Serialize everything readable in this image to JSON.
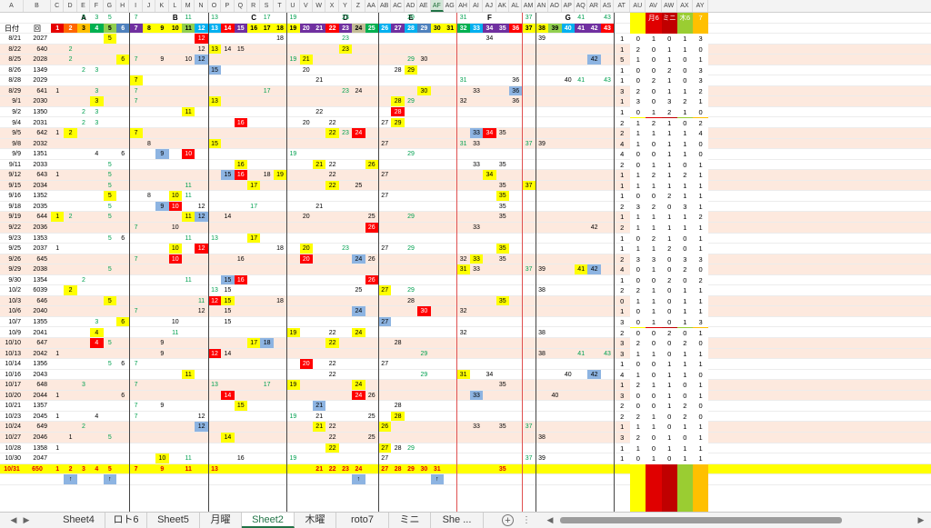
{
  "columns": [
    "A",
    "B",
    "C",
    "D",
    "E",
    "F",
    "G",
    "H",
    "I",
    "J",
    "K",
    "L",
    "M",
    "N",
    "O",
    "P",
    "Q",
    "R",
    "S",
    "T",
    "U",
    "V",
    "W",
    "X",
    "Y",
    "Z",
    "AA",
    "AB",
    "AC",
    "AD",
    "AE",
    "AF",
    "AG",
    "AH",
    "AI",
    "AJ",
    "AK",
    "AL",
    "AM",
    "AN",
    "AO",
    "AP",
    "AQ",
    "AR",
    "AS",
    "AT",
    "AU",
    "AV",
    "AW",
    "AX",
    "AY"
  ],
  "selected_column": "AF",
  "group_headers": [
    {
      "label": "A",
      "col": "E"
    },
    {
      "label": "B",
      "col": "L"
    },
    {
      "label": "C",
      "col": "R"
    },
    {
      "label": "D",
      "col": "Y"
    },
    {
      "label": "E",
      "col": "AD"
    },
    {
      "label": "F",
      "col": "AJ"
    },
    {
      "label": "G",
      "col": "AP"
    }
  ],
  "header_row": {
    "date_label": "日付",
    "kai_label": "回",
    "numbers": [
      "1",
      "2",
      "3",
      "4",
      "5",
      "6",
      "7",
      "8",
      "9",
      "10",
      "11",
      "12",
      "13",
      "14",
      "15",
      "16",
      "17",
      "18",
      "19",
      "20",
      "21",
      "22",
      "23",
      "24",
      "25",
      "26",
      "27",
      "28",
      "29",
      "30",
      "31",
      "32",
      "33",
      "34",
      "35",
      "36",
      "37",
      "38",
      "39",
      "40",
      "41",
      "42",
      "43"
    ],
    "top_numbers": {
      "E": "2",
      "F": "3",
      "G": "5",
      "I": "7",
      "M": "11",
      "O": "13",
      "S": "17",
      "U": "19",
      "Y": "23",
      "AD": "29",
      "AH": "31",
      "AM": "37",
      "AQ": "41",
      "AS": "43"
    },
    "sum_labels": [
      "",
      "月6",
      "ミニ",
      "木6",
      ""
    ],
    "sum_top": [
      "",
      "",
      "",
      "",
      "7"
    ]
  },
  "rows": [
    {
      "date": "8/21",
      "kai": "2027",
      "cells": {
        "G": "5",
        "N": "12",
        "T": "18",
        "Y": "23",
        "AJ": "34",
        "AN": "39"
      },
      "sum": [
        "1",
        "0",
        "1",
        "0",
        "1",
        "3"
      ]
    },
    {
      "date": "8/22",
      "kai": "640",
      "cells": {
        "D": "2",
        "N": "12",
        "O": "13",
        "P": "14",
        "Q": "15",
        "Y": "23"
      },
      "sum": [
        "1",
        "2",
        "0",
        "1",
        "1",
        "0"
      ]
    },
    {
      "date": "8/25",
      "kai": "2028",
      "cells": {
        "D": "2",
        "H": "6",
        "I": "7",
        "K": "9",
        "M": "10",
        "N": "12",
        "U": "19",
        "V": "21",
        "AD": "29",
        "AE": "30",
        "AR": "42"
      },
      "sum": [
        "5",
        "1",
        "0",
        "1",
        "0",
        "1"
      ]
    },
    {
      "date": "8/26",
      "kai": "1349",
      "cells": {
        "E": "2",
        "F": "3",
        "O": "15",
        "V": "20",
        "AC": "28",
        "AD": "29"
      },
      "sum": [
        "1",
        "0",
        "0",
        "2",
        "0",
        "3"
      ]
    },
    {
      "date": "8/28",
      "kai": "2029",
      "cells": {
        "I": "7",
        "W": "21",
        "AH": "31",
        "AL": "36",
        "AP": "40",
        "AQ": "41",
        "AS": "43"
      },
      "sum": [
        "1",
        "0",
        "2",
        "1",
        "0",
        "3"
      ]
    },
    {
      "date": "8/29",
      "kai": "641",
      "cells": {
        "C": "1",
        "F": "3",
        "I": "7",
        "S": "17",
        "Y": "23",
        "Z": "24",
        "AE": "30",
        "AI": "33",
        "AL": "36"
      },
      "sum": [
        "3",
        "2",
        "0",
        "1",
        "1",
        "2"
      ]
    },
    {
      "date": "9/1",
      "kai": "2030",
      "cells": {
        "F": "3",
        "I": "7",
        "O": "13",
        "AC": "28",
        "AD": "29",
        "AH": "32",
        "AL": "36"
      },
      "sum": [
        "1",
        "3",
        "0",
        "3",
        "2",
        "1"
      ]
    },
    {
      "date": "9/2",
      "kai": "1350",
      "cells": {
        "E": "2",
        "F": "3",
        "M": "11",
        "W": "22",
        "AC": "28"
      },
      "sum": [
        "1",
        "0",
        "1",
        "2",
        "1",
        "0"
      ]
    },
    {
      "date": "9/4",
      "kai": "2031",
      "cells": {
        "E": "2",
        "F": "3",
        "Q": "16",
        "V": "20",
        "X": "22",
        "AB": "27",
        "AC": "29"
      },
      "sum": [
        "2",
        "1",
        "2",
        "1",
        "0",
        "2"
      ]
    },
    {
      "date": "9/5",
      "kai": "642",
      "cells": {
        "C": "1",
        "D": "2",
        "I": "7",
        "X": "22",
        "Y": "23",
        "Z": "24",
        "AI": "33",
        "AJ": "34",
        "AK": "35"
      },
      "sum": [
        "2",
        "1",
        "1",
        "1",
        "1",
        "4"
      ]
    },
    {
      "date": "9/8",
      "kai": "2032",
      "cells": {
        "J": "8",
        "O": "15",
        "AB": "27",
        "AH": "31",
        "AI": "33",
        "AM": "37",
        "AN": "39"
      },
      "sum": [
        "4",
        "1",
        "0",
        "1",
        "1",
        "0"
      ]
    },
    {
      "date": "9/9",
      "kai": "1351",
      "cells": {
        "F": "4",
        "H": "6",
        "K": "9",
        "M": "10",
        "U": "19",
        "AD": "29"
      },
      "sum": [
        "4",
        "0",
        "0",
        "1",
        "1",
        "0"
      ]
    },
    {
      "date": "9/11",
      "kai": "2033",
      "cells": {
        "G": "5",
        "Q": "16",
        "W": "21",
        "X": "22",
        "AA": "26",
        "AI": "33",
        "AK": "35"
      },
      "sum": [
        "2",
        "0",
        "1",
        "1",
        "0",
        "1"
      ]
    },
    {
      "date": "9/12",
      "kai": "643",
      "cells": {
        "C": "1",
        "G": "5",
        "P": "15",
        "Q": "16",
        "S": "18",
        "T": "19",
        "X": "22",
        "AB": "27",
        "AJ": "34"
      },
      "sum": [
        "1",
        "1",
        "2",
        "1",
        "2",
        "1"
      ]
    },
    {
      "date": "9/15",
      "kai": "2034",
      "cells": {
        "G": "5",
        "M": "11",
        "R": "17",
        "X": "22",
        "Z": "25",
        "AK": "35",
        "AM": "37"
      },
      "sum": [
        "1",
        "1",
        "1",
        "1",
        "1",
        "1"
      ]
    },
    {
      "date": "9/16",
      "kai": "1352",
      "cells": {
        "G": "5",
        "J": "8",
        "L": "10",
        "M": "11",
        "AB": "27",
        "AK": "35"
      },
      "sum": [
        "1",
        "0",
        "0",
        "2",
        "1",
        "1"
      ]
    },
    {
      "date": "9/18",
      "kai": "2035",
      "cells": {
        "G": "5",
        "K": "9",
        "L": "10",
        "N": "12",
        "R": "17",
        "W": "21",
        "AK": "35"
      },
      "sum": [
        "2",
        "3",
        "2",
        "0",
        "3",
        "1"
      ]
    },
    {
      "date": "9/19",
      "kai": "644",
      "cells": {
        "C": "1",
        "D": "2",
        "G": "5",
        "M": "11",
        "N": "12",
        "P": "14",
        "V": "20",
        "AA": "25",
        "AD": "29",
        "AK": "35"
      },
      "sum": [
        "1",
        "1",
        "1",
        "1",
        "1",
        "2"
      ]
    },
    {
      "date": "9/22",
      "kai": "2036",
      "cells": {
        "I": "7",
        "L": "10",
        "AA": "26",
        "AI": "33",
        "AR": "42"
      },
      "sum": [
        "2",
        "1",
        "1",
        "1",
        "1",
        "1"
      ]
    },
    {
      "date": "9/23",
      "kai": "1353",
      "cells": {
        "G": "5",
        "H": "6",
        "M": "11",
        "O": "13",
        "R": "17"
      },
      "sum": [
        "1",
        "0",
        "2",
        "1",
        "0",
        "1"
      ]
    },
    {
      "date": "9/25",
      "kai": "2037",
      "cells": {
        "C": "1",
        "L": "10",
        "N": "12",
        "T": "18",
        "V": "20",
        "Y": "23",
        "AB": "27",
        "AD": "29",
        "AK": "35"
      },
      "sum": [
        "1",
        "1",
        "1",
        "2",
        "0",
        "1"
      ]
    },
    {
      "date": "9/26",
      "kai": "645",
      "cells": {
        "I": "7",
        "L": "10",
        "Q": "16",
        "V": "20",
        "Z": "24",
        "AA": "26",
        "AH": "32",
        "AI": "33",
        "AK": "35"
      },
      "sum": [
        "2",
        "3",
        "3",
        "0",
        "3",
        "3"
      ]
    },
    {
      "date": "9/29",
      "kai": "2038",
      "cells": {
        "G": "5",
        "AH": "31",
        "AI": "33",
        "AM": "37",
        "AN": "39",
        "AQ": "41",
        "AR": "42"
      },
      "sum": [
        "4",
        "0",
        "1",
        "0",
        "2",
        "0"
      ]
    },
    {
      "date": "9/30",
      "kai": "1354",
      "cells": {
        "E": "2",
        "M": "11",
        "P": "15",
        "Q": "16",
        "AA": "26"
      },
      "sum": [
        "1",
        "0",
        "0",
        "2",
        "0",
        "2"
      ]
    },
    {
      "date": "10/2",
      "kai": "6039",
      "cells": {
        "D": "2",
        "O": "13",
        "P": "15",
        "Z": "25",
        "AB": "27",
        "AD": "29",
        "AN": "38"
      },
      "sum": [
        "2",
        "2",
        "1",
        "0",
        "1",
        "1"
      ]
    },
    {
      "date": "10/3",
      "kai": "646",
      "cells": {
        "G": "5",
        "N": "11",
        "O": "12",
        "P": "15",
        "T": "18",
        "AD": "28",
        "AK": "35"
      },
      "sum": [
        "0",
        "1",
        "1",
        "0",
        "1",
        "1"
      ]
    },
    {
      "date": "10/6",
      "kai": "2040",
      "cells": {
        "I": "7",
        "N": "12",
        "P": "15",
        "Z": "24",
        "AE": "30",
        "AH": "32"
      },
      "sum": [
        "1",
        "0",
        "1",
        "0",
        "1",
        "1"
      ]
    },
    {
      "date": "10/7",
      "kai": "1355",
      "cells": {
        "F": "3",
        "H": "6",
        "L": "10",
        "P": "15",
        "AB": "27"
      },
      "sum": [
        "3",
        "0",
        "1",
        "0",
        "1",
        "3"
      ]
    },
    {
      "date": "10/9",
      "kai": "2041",
      "cells": {
        "F": "4",
        "L": "11",
        "U": "19",
        "X": "22",
        "Z": "24",
        "AH": "32",
        "AN": "38"
      },
      "sum": [
        "2",
        "0",
        "0",
        "2",
        "0",
        "1"
      ]
    },
    {
      "date": "10/10",
      "kai": "647",
      "cells": {
        "F": "4",
        "G": "5",
        "K": "9",
        "R": "17",
        "S": "18",
        "X": "22",
        "AC": "28"
      },
      "sum": [
        "3",
        "2",
        "0",
        "0",
        "2",
        "0"
      ]
    },
    {
      "date": "10/13",
      "kai": "2042",
      "cells": {
        "C": "1",
        "K": "9",
        "O": "12",
        "P": "14",
        "AE": "29",
        "AN": "38",
        "AQ": "41",
        "AS": "43"
      },
      "sum": [
        "3",
        "1",
        "1",
        "0",
        "1",
        "1"
      ]
    },
    {
      "date": "10/14",
      "kai": "1356",
      "cells": {
        "G": "5",
        "H": "6",
        "I": "7",
        "V": "20",
        "X": "22",
        "AB": "27"
      },
      "sum": [
        "1",
        "0",
        "0",
        "1",
        "1",
        "1"
      ]
    },
    {
      "date": "10/16",
      "kai": "2043",
      "cells": {
        "M": "11",
        "X": "22",
        "AE": "29",
        "AH": "31",
        "AJ": "34",
        "AP": "40",
        "AR": "42"
      },
      "sum": [
        "4",
        "1",
        "0",
        "1",
        "1",
        "0"
      ]
    },
    {
      "date": "10/17",
      "kai": "648",
      "cells": {
        "E": "3",
        "I": "7",
        "O": "13",
        "S": "17",
        "U": "19",
        "Z": "24",
        "AK": "35"
      },
      "sum": [
        "1",
        "2",
        "1",
        "1",
        "0",
        "1"
      ]
    },
    {
      "date": "10/20",
      "kai": "2044",
      "cells": {
        "C": "1",
        "H": "6",
        "P": "14",
        "Z": "24",
        "AA": "26",
        "AI": "33",
        "AO": "40"
      },
      "sum": [
        "3",
        "0",
        "0",
        "1",
        "0",
        "1"
      ]
    },
    {
      "date": "10/21",
      "kai": "1357",
      "cells": {
        "I": "7",
        "K": "9",
        "Q": "15",
        "W": "21",
        "AC": "28"
      },
      "sum": [
        "2",
        "0",
        "0",
        "1",
        "2",
        "0"
      ]
    },
    {
      "date": "10/23",
      "kai": "2045",
      "cells": {
        "C": "1",
        "F": "4",
        "I": "7",
        "N": "12",
        "U": "19",
        "W": "21",
        "AA": "25",
        "AC": "28"
      },
      "sum": [
        "2",
        "2",
        "1",
        "0",
        "2",
        "0"
      ]
    },
    {
      "date": "10/24",
      "kai": "649",
      "cells": {
        "E": "2",
        "N": "12",
        "W": "21",
        "X": "22",
        "AB": "26",
        "AI": "33",
        "AK": "35",
        "AM": "37"
      },
      "sum": [
        "1",
        "1",
        "1",
        "0",
        "1",
        "1"
      ]
    },
    {
      "date": "10/27",
      "kai": "2046",
      "cells": {
        "D": "1",
        "G": "5",
        "P": "14",
        "X": "22",
        "AA": "25",
        "AN": "38"
      },
      "sum": [
        "3",
        "2",
        "0",
        "1",
        "0",
        "1"
      ]
    },
    {
      "date": "10/28",
      "kai": "1358",
      "cells": {
        "C": "1",
        "X": "22",
        "AB": "27",
        "AC": "28",
        "AD": "29"
      },
      "sum": [
        "1",
        "1",
        "0",
        "1",
        "1",
        "1"
      ]
    },
    {
      "date": "10/30",
      "kai": "2047",
      "cells": {
        "K": "10",
        "M": "11",
        "Q": "16",
        "U": "19",
        "AB": "27",
        "AM": "37",
        "AN": "39"
      },
      "sum": [
        "1",
        "0",
        "1",
        "0",
        "1",
        "1"
      ]
    }
  ],
  "total_row": {
    "date": "10/31",
    "kai": "650",
    "cells": {
      "C": "1",
      "D": "2",
      "E": "3",
      "F": "4",
      "G": "5",
      "I": "7",
      "K": "9",
      "M": "11",
      "O": "13",
      "W": "21",
      "X": "22",
      "Y": "23",
      "Z": "24",
      "AB": "27",
      "AC": "28",
      "AD": "29",
      "AE": "30",
      "AF": "31",
      "AK": "35"
    }
  },
  "arrow_row": {
    "D": "↑",
    "G": "↑",
    "Z": "↑",
    "AF": "↑"
  },
  "tabs": [
    {
      "label": "Sheet4"
    },
    {
      "label": "ロト6"
    },
    {
      "label": "Sheet5"
    },
    {
      "label": "月曜"
    },
    {
      "label": "Sheet2",
      "active": true
    },
    {
      "label": "木曜"
    },
    {
      "label": "roto7"
    },
    {
      "label": "ミニ"
    },
    {
      "label": "She ..."
    }
  ],
  "colors": {
    "accent": "#217346",
    "yellow": "#ffff00",
    "red": "#e00000",
    "blue": "#8db4e2",
    "shade": "#fde9de",
    "total": "#ffff00"
  }
}
